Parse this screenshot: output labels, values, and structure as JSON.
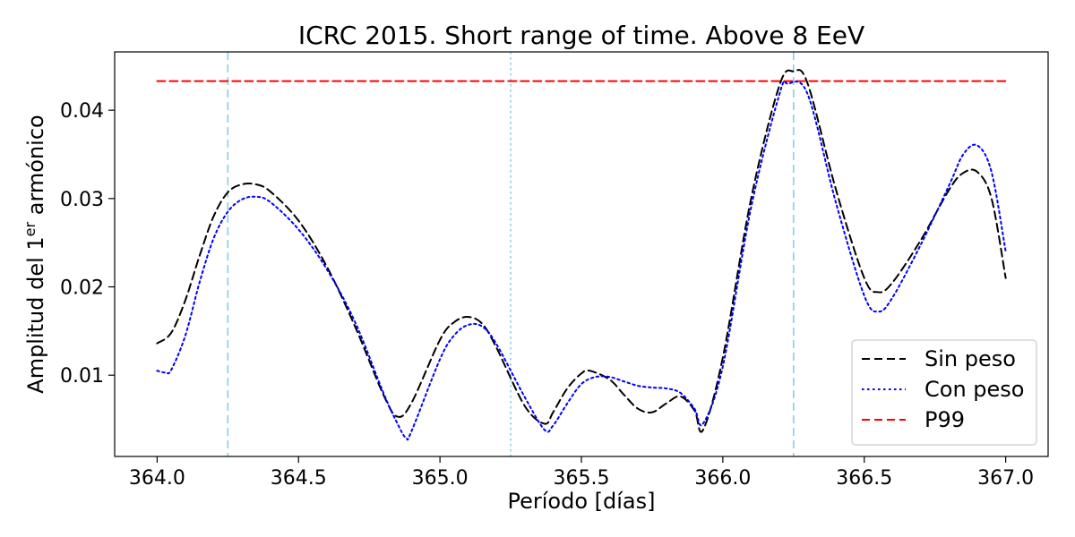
{
  "chart_data": {
    "type": "line",
    "title": "ICRC 2015. Short range of time. Above 8 EeV",
    "xlabel": "Período [días]",
    "ylabel": {
      "prefix": "Amplitud del 1",
      "superscript": "er",
      "suffix": " armónico"
    },
    "xlim": [
      363.85,
      367.15
    ],
    "ylim": [
      0.0008,
      0.0466
    ],
    "xticks": [
      364.0,
      364.5,
      365.0,
      365.5,
      366.0,
      366.5,
      367.0
    ],
    "xtick_labels": [
      "364.0",
      "364.5",
      "365.0",
      "365.5",
      "366.0",
      "366.5",
      "367.0"
    ],
    "yticks": [
      0.01,
      0.02,
      0.03,
      0.04
    ],
    "ytick_labels": [
      "0.01",
      "0.02",
      "0.03",
      "0.04"
    ],
    "grid": false,
    "legend_position": "bottom-right",
    "vlines": [
      {
        "x": 364.25,
        "style": "dashed",
        "color": "#87ceeb"
      },
      {
        "x": 365.25,
        "style": "dotted",
        "color": "#87ceeb"
      },
      {
        "x": 366.25,
        "style": "dashed",
        "color": "#87ceeb"
      }
    ],
    "series": [
      {
        "name": "Sin peso",
        "color": "#000000",
        "style": "dashed",
        "x": [
          364.0,
          364.05,
          364.1,
          364.15,
          364.2,
          364.25,
          364.3,
          364.35,
          364.4,
          364.5,
          364.6,
          364.7,
          364.8,
          364.85,
          364.9,
          365.0,
          365.05,
          365.1,
          365.15,
          365.2,
          365.3,
          365.37,
          365.4,
          365.45,
          365.5,
          365.53,
          365.6,
          365.65,
          365.7,
          365.75,
          365.8,
          365.85,
          365.9,
          365.93,
          366.0,
          366.1,
          366.2,
          366.25,
          366.3,
          366.4,
          366.5,
          366.55,
          366.6,
          366.7,
          366.8,
          366.85,
          366.9,
          366.95,
          367.0
        ],
        "y": [
          0.0136,
          0.0148,
          0.0185,
          0.0235,
          0.028,
          0.0307,
          0.0316,
          0.0316,
          0.0308,
          0.0275,
          0.0223,
          0.0155,
          0.0078,
          0.0053,
          0.0069,
          0.014,
          0.016,
          0.0166,
          0.0158,
          0.0131,
          0.0065,
          0.0045,
          0.0058,
          0.0085,
          0.0102,
          0.0105,
          0.0095,
          0.0078,
          0.0062,
          0.0058,
          0.0068,
          0.0076,
          0.006,
          0.0038,
          0.012,
          0.03,
          0.0428,
          0.0444,
          0.043,
          0.031,
          0.021,
          0.0194,
          0.0205,
          0.0253,
          0.031,
          0.0329,
          0.033,
          0.03,
          0.021
        ]
      },
      {
        "name": "Con peso",
        "color": "#0000ff",
        "style": "dotted",
        "x": [
          364.0,
          364.03,
          364.05,
          364.1,
          364.15,
          364.2,
          364.25,
          364.3,
          364.35,
          364.4,
          364.5,
          364.6,
          364.7,
          364.8,
          364.85,
          364.88,
          364.9,
          365.0,
          365.05,
          365.1,
          365.15,
          365.2,
          365.3,
          365.37,
          365.4,
          365.45,
          365.5,
          365.55,
          365.6,
          365.65,
          365.7,
          365.75,
          365.8,
          365.85,
          365.9,
          365.93,
          366.0,
          366.1,
          366.2,
          366.23,
          366.3,
          366.4,
          366.5,
          366.55,
          366.6,
          366.7,
          366.8,
          366.85,
          366.9,
          366.95,
          367.0
        ],
        "y": [
          0.0105,
          0.0103,
          0.0106,
          0.0145,
          0.0205,
          0.0255,
          0.0285,
          0.0299,
          0.0302,
          0.0296,
          0.0265,
          0.022,
          0.016,
          0.008,
          0.0045,
          0.0029,
          0.0037,
          0.0118,
          0.0145,
          0.0157,
          0.0155,
          0.0135,
          0.0075,
          0.0038,
          0.0043,
          0.0068,
          0.009,
          0.0098,
          0.0098,
          0.0093,
          0.0088,
          0.0086,
          0.0085,
          0.008,
          0.0062,
          0.0045,
          0.011,
          0.029,
          0.0418,
          0.043,
          0.0418,
          0.0295,
          0.019,
          0.0172,
          0.0188,
          0.0248,
          0.0315,
          0.035,
          0.036,
          0.033,
          0.024
        ]
      },
      {
        "name": "P99",
        "color": "#ff0000",
        "style": "dashed",
        "x": [
          364.0,
          367.0
        ],
        "y": [
          0.0433,
          0.0433
        ]
      }
    ]
  }
}
